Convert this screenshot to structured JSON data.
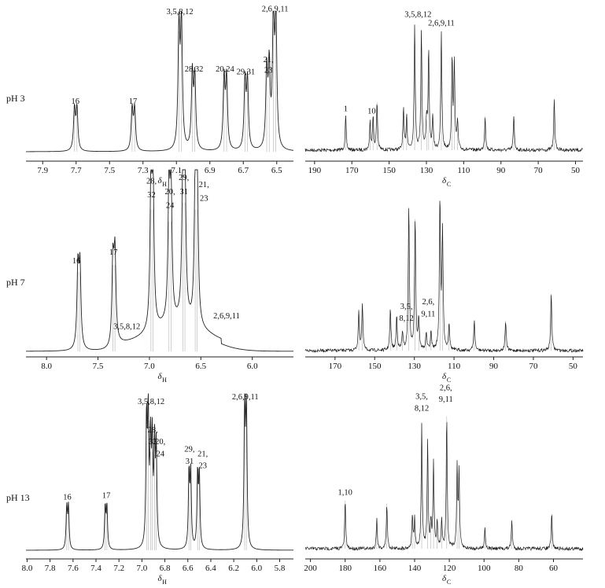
{
  "chart_data": [
    {
      "type": "line",
      "panel": "H-pH3",
      "row_label": "pH 3",
      "xlabel_main": "δ",
      "xlabel_sub": "H",
      "xlim": [
        8.0,
        6.4
      ],
      "ticks": [
        7.9,
        7.7,
        7.5,
        7.3,
        7.1,
        6.9,
        6.7,
        6.5
      ],
      "tick_labels": [
        "7.9",
        "7.7",
        "7.5",
        "7.3",
        "7.1",
        "6.9",
        "6.7",
        "6.5"
      ],
      "peaks": [
        {
          "x": 7.71,
          "h": 0.31
        },
        {
          "x": 7.695,
          "h": 0.31
        },
        {
          "x": 7.365,
          "h": 0.31
        },
        {
          "x": 7.35,
          "h": 0.31
        },
        {
          "x": 7.085,
          "h": 0.9
        },
        {
          "x": 7.07,
          "h": 0.95
        },
        {
          "x": 7.005,
          "h": 0.56
        },
        {
          "x": 6.99,
          "h": 0.53
        },
        {
          "x": 6.815,
          "h": 0.53
        },
        {
          "x": 6.8,
          "h": 0.53
        },
        {
          "x": 6.69,
          "h": 0.51
        },
        {
          "x": 6.675,
          "h": 0.51
        },
        {
          "x": 6.56,
          "h": 0.57
        },
        {
          "x": 6.545,
          "h": 0.59
        },
        {
          "x": 6.52,
          "h": 0.97
        },
        {
          "x": 6.505,
          "h": 0.97
        }
      ],
      "annotations": [
        {
          "text": "16",
          "x": 7.705,
          "h": 0.36
        },
        {
          "text": "17",
          "x": 7.36,
          "h": 0.36
        },
        {
          "text": "3,5,8,12",
          "x": 7.08,
          "h": 1.03
        },
        {
          "text": "28,32",
          "x": 6.995,
          "h": 0.6
        },
        {
          "text": "20,24",
          "x": 6.81,
          "h": 0.6
        },
        {
          "text": "29,31",
          "x": 6.685,
          "h": 0.58
        },
        {
          "text": "21,",
          "x": 6.55,
          "h": 0.67
        },
        {
          "text": "23",
          "x": 6.55,
          "h": 0.59
        },
        {
          "text": "2,6,9,11",
          "x": 6.51,
          "h": 1.05
        }
      ]
    },
    {
      "type": "line",
      "panel": "C-pH3",
      "xlabel_main": "δ",
      "xlabel_sub": "C",
      "xlim": [
        195,
        46
      ],
      "ticks": [
        190,
        170,
        150,
        130,
        110,
        90,
        70,
        50
      ],
      "tick_labels": [
        "190",
        "170",
        "150",
        "130",
        "110",
        "90",
        "70",
        "50"
      ],
      "peaks": [
        {
          "x": 173.3,
          "h": 0.27
        },
        {
          "x": 160.2,
          "h": 0.22
        },
        {
          "x": 158.6,
          "h": 0.26
        },
        {
          "x": 156.5,
          "h": 0.38
        },
        {
          "x": 142.3,
          "h": 0.32
        },
        {
          "x": 140.6,
          "h": 0.27
        },
        {
          "x": 136.3,
          "h": 1.0
        },
        {
          "x": 132.7,
          "h": 0.95
        },
        {
          "x": 129.9,
          "h": 0.24
        },
        {
          "x": 128.8,
          "h": 0.78
        },
        {
          "x": 126.6,
          "h": 0.27
        },
        {
          "x": 122.0,
          "h": 0.93
        },
        {
          "x": 116.2,
          "h": 0.71
        },
        {
          "x": 115.0,
          "h": 0.67
        },
        {
          "x": 113.3,
          "h": 0.22
        },
        {
          "x": 98.5,
          "h": 0.27
        },
        {
          "x": 83.1,
          "h": 0.27
        },
        {
          "x": 61.4,
          "h": 0.41
        }
      ],
      "annotations": [
        {
          "text": "1",
          "x": 173.3,
          "h": 0.31
        },
        {
          "text": "10",
          "x": 159.4,
          "h": 0.29
        },
        {
          "text": "3,5,8,12",
          "x": 134.5,
          "h": 1.06
        },
        {
          "text": "2,6,9,11",
          "x": 122.0,
          "h": 0.99
        }
      ]
    },
    {
      "type": "line",
      "panel": "H-pH7",
      "row_label": "pH 7",
      "xlabel_main": "δ",
      "xlabel_sub": "H",
      "xlim": [
        8.2,
        5.6
      ],
      "ticks": [
        8.0,
        7.5,
        7.0,
        6.5,
        6.0
      ],
      "tick_labels": [
        "8.0",
        "7.5",
        "7.0",
        "6.5",
        "6.0"
      ],
      "peaks": [
        {
          "x": 7.695,
          "h": 0.46
        },
        {
          "x": 7.675,
          "h": 0.46
        },
        {
          "x": 7.355,
          "h": 0.5
        },
        {
          "x": 7.335,
          "h": 0.5
        },
        {
          "x": 6.985,
          "h": 0.82
        },
        {
          "x": 6.965,
          "h": 0.82
        },
        {
          "x": 6.81,
          "h": 0.75
        },
        {
          "x": 6.79,
          "h": 0.75
        },
        {
          "x": 6.675,
          "h": 0.86
        },
        {
          "x": 6.655,
          "h": 0.86
        },
        {
          "x": 6.555,
          "h": 0.82
        },
        {
          "x": 6.535,
          "h": 0.82
        }
      ],
      "annotations": [
        {
          "text": "16",
          "x": 7.71,
          "h": 0.51
        },
        {
          "text": "17",
          "x": 7.35,
          "h": 0.56
        },
        {
          "text": "3,5,8,12",
          "x": 7.22,
          "h": 0.13
        },
        {
          "text": "28,",
          "x": 6.98,
          "h": 0.97
        },
        {
          "text": "32",
          "x": 6.98,
          "h": 0.89
        },
        {
          "text": "20,",
          "x": 6.8,
          "h": 0.91
        },
        {
          "text": "24",
          "x": 6.8,
          "h": 0.83
        },
        {
          "text": "29,",
          "x": 6.665,
          "h": 0.99
        },
        {
          "text": "31",
          "x": 6.665,
          "h": 0.91
        },
        {
          "text": "21,",
          "x": 6.47,
          "h": 0.95
        },
        {
          "text": "23",
          "x": 6.47,
          "h": 0.87
        },
        {
          "text": "2,6,9,11",
          "x": 6.25,
          "h": 0.19
        }
      ]
    },
    {
      "type": "line",
      "panel": "C-pH7",
      "xlabel_main": "δ",
      "xlabel_sub": "C",
      "xlim": [
        185,
        45
      ],
      "ticks": [
        170,
        150,
        130,
        110,
        90,
        70,
        50
      ],
      "tick_labels": [
        "170",
        "150",
        "130",
        "110",
        "90",
        "70",
        "50"
      ],
      "peaks": [
        {
          "x": 158.0,
          "h": 0.26
        },
        {
          "x": 156.2,
          "h": 0.3
        },
        {
          "x": 142.1,
          "h": 0.27
        },
        {
          "x": 138.9,
          "h": 0.23
        },
        {
          "x": 136.0,
          "h": 0.12
        },
        {
          "x": 132.8,
          "h": 0.96
        },
        {
          "x": 129.6,
          "h": 0.88
        },
        {
          "x": 127.8,
          "h": 0.21
        },
        {
          "x": 124.0,
          "h": 0.12
        },
        {
          "x": 121.6,
          "h": 0.12
        },
        {
          "x": 117.1,
          "h": 1.0
        },
        {
          "x": 115.8,
          "h": 0.78
        },
        {
          "x": 112.5,
          "h": 0.18
        },
        {
          "x": 99.8,
          "h": 0.2
        },
        {
          "x": 84.0,
          "h": 0.2
        },
        {
          "x": 61.0,
          "h": 0.38
        }
      ],
      "annotations": [
        {
          "text": "3,5,",
          "x": 134.0,
          "h": 0.28
        },
        {
          "text": "8,12",
          "x": 134.0,
          "h": 0.2
        },
        {
          "text": "2,6,",
          "x": 123.0,
          "h": 0.31
        },
        {
          "text": "9,11",
          "x": 123.0,
          "h": 0.23
        }
      ]
    },
    {
      "type": "line",
      "panel": "H-pH13",
      "row_label": "pH 13",
      "xlabel_main": "δ",
      "xlabel_sub": "H",
      "xlim": [
        8.01,
        5.68
      ],
      "ticks": [
        8.0,
        7.8,
        7.6,
        7.4,
        7.2,
        7.0,
        6.8,
        6.6,
        6.4,
        6.2,
        6.0,
        5.8
      ],
      "tick_labels": [
        "8.0",
        "7.8",
        "7.6",
        "7.4",
        "7.2",
        "7.0",
        "6.8",
        "6.6",
        "6.4",
        "6.2",
        "6.0",
        "5.8"
      ],
      "peaks": [
        {
          "x": 7.655,
          "h": 0.28
        },
        {
          "x": 7.64,
          "h": 0.28
        },
        {
          "x": 7.32,
          "h": 0.28
        },
        {
          "x": 7.305,
          "h": 0.28
        },
        {
          "x": 6.96,
          "h": 0.83
        },
        {
          "x": 6.945,
          "h": 0.87
        },
        {
          "x": 6.925,
          "h": 0.66
        },
        {
          "x": 6.91,
          "h": 0.66
        },
        {
          "x": 6.89,
          "h": 0.64
        },
        {
          "x": 6.875,
          "h": 0.64
        },
        {
          "x": 6.59,
          "h": 0.5
        },
        {
          "x": 6.575,
          "h": 0.5
        },
        {
          "x": 6.515,
          "h": 0.49
        },
        {
          "x": 6.5,
          "h": 0.49
        },
        {
          "x": 6.105,
          "h": 0.96
        },
        {
          "x": 6.09,
          "h": 0.96
        }
      ],
      "annotations": [
        {
          "text": "16",
          "x": 7.65,
          "h": 0.34
        },
        {
          "text": "17",
          "x": 7.31,
          "h": 0.35
        },
        {
          "text": "3,5,8,12",
          "x": 6.92,
          "h": 0.98
        },
        {
          "text": "28,",
          "x": 6.905,
          "h": 0.79
        },
        {
          "text": "32",
          "x": 6.905,
          "h": 0.71
        },
        {
          "text": "20,",
          "x": 6.84,
          "h": 0.71
        },
        {
          "text": "24",
          "x": 6.84,
          "h": 0.63
        },
        {
          "text": "29,",
          "x": 6.585,
          "h": 0.66
        },
        {
          "text": "31",
          "x": 6.585,
          "h": 0.58
        },
        {
          "text": "21,",
          "x": 6.47,
          "h": 0.63
        },
        {
          "text": "23",
          "x": 6.47,
          "h": 0.55
        },
        {
          "text": "2,6,9,11",
          "x": 6.1,
          "h": 1.01
        }
      ]
    },
    {
      "type": "line",
      "panel": "C-pH13",
      "xlabel_main": "δ",
      "xlabel_sub": "C",
      "xlim": [
        203,
        43
      ],
      "ticks": [
        200,
        180,
        160,
        140,
        120,
        100,
        80,
        60
      ],
      "tick_labels": [
        "200",
        "180",
        "160",
        "140",
        "120",
        "100",
        "80",
        "60"
      ],
      "peaks": [
        {
          "x": 180.0,
          "h": 0.33
        },
        {
          "x": 161.8,
          "h": 0.21
        },
        {
          "x": 156.0,
          "h": 0.31
        },
        {
          "x": 141.3,
          "h": 0.23
        },
        {
          "x": 140.0,
          "h": 0.2
        },
        {
          "x": 135.9,
          "h": 0.86
        },
        {
          "x": 132.5,
          "h": 0.74
        },
        {
          "x": 130.6,
          "h": 0.18
        },
        {
          "x": 129.1,
          "h": 0.6
        },
        {
          "x": 127.0,
          "h": 0.18
        },
        {
          "x": 124.4,
          "h": 0.2
        },
        {
          "x": 121.5,
          "h": 0.91
        },
        {
          "x": 115.5,
          "h": 0.56
        },
        {
          "x": 114.4,
          "h": 0.52
        },
        {
          "x": 99.5,
          "h": 0.15
        },
        {
          "x": 84.0,
          "h": 0.2
        },
        {
          "x": 61.0,
          "h": 0.24
        }
      ],
      "annotations": [
        {
          "text": "1,10",
          "x": 180.0,
          "h": 0.37
        },
        {
          "text": "3,5,",
          "x": 135.9,
          "h": 1.03
        },
        {
          "text": "8,12",
          "x": 135.9,
          "h": 0.95
        },
        {
          "text": "2,6,",
          "x": 122.0,
          "h": 1.09
        },
        {
          "text": "9,11",
          "x": 122.0,
          "h": 1.01
        }
      ]
    }
  ]
}
